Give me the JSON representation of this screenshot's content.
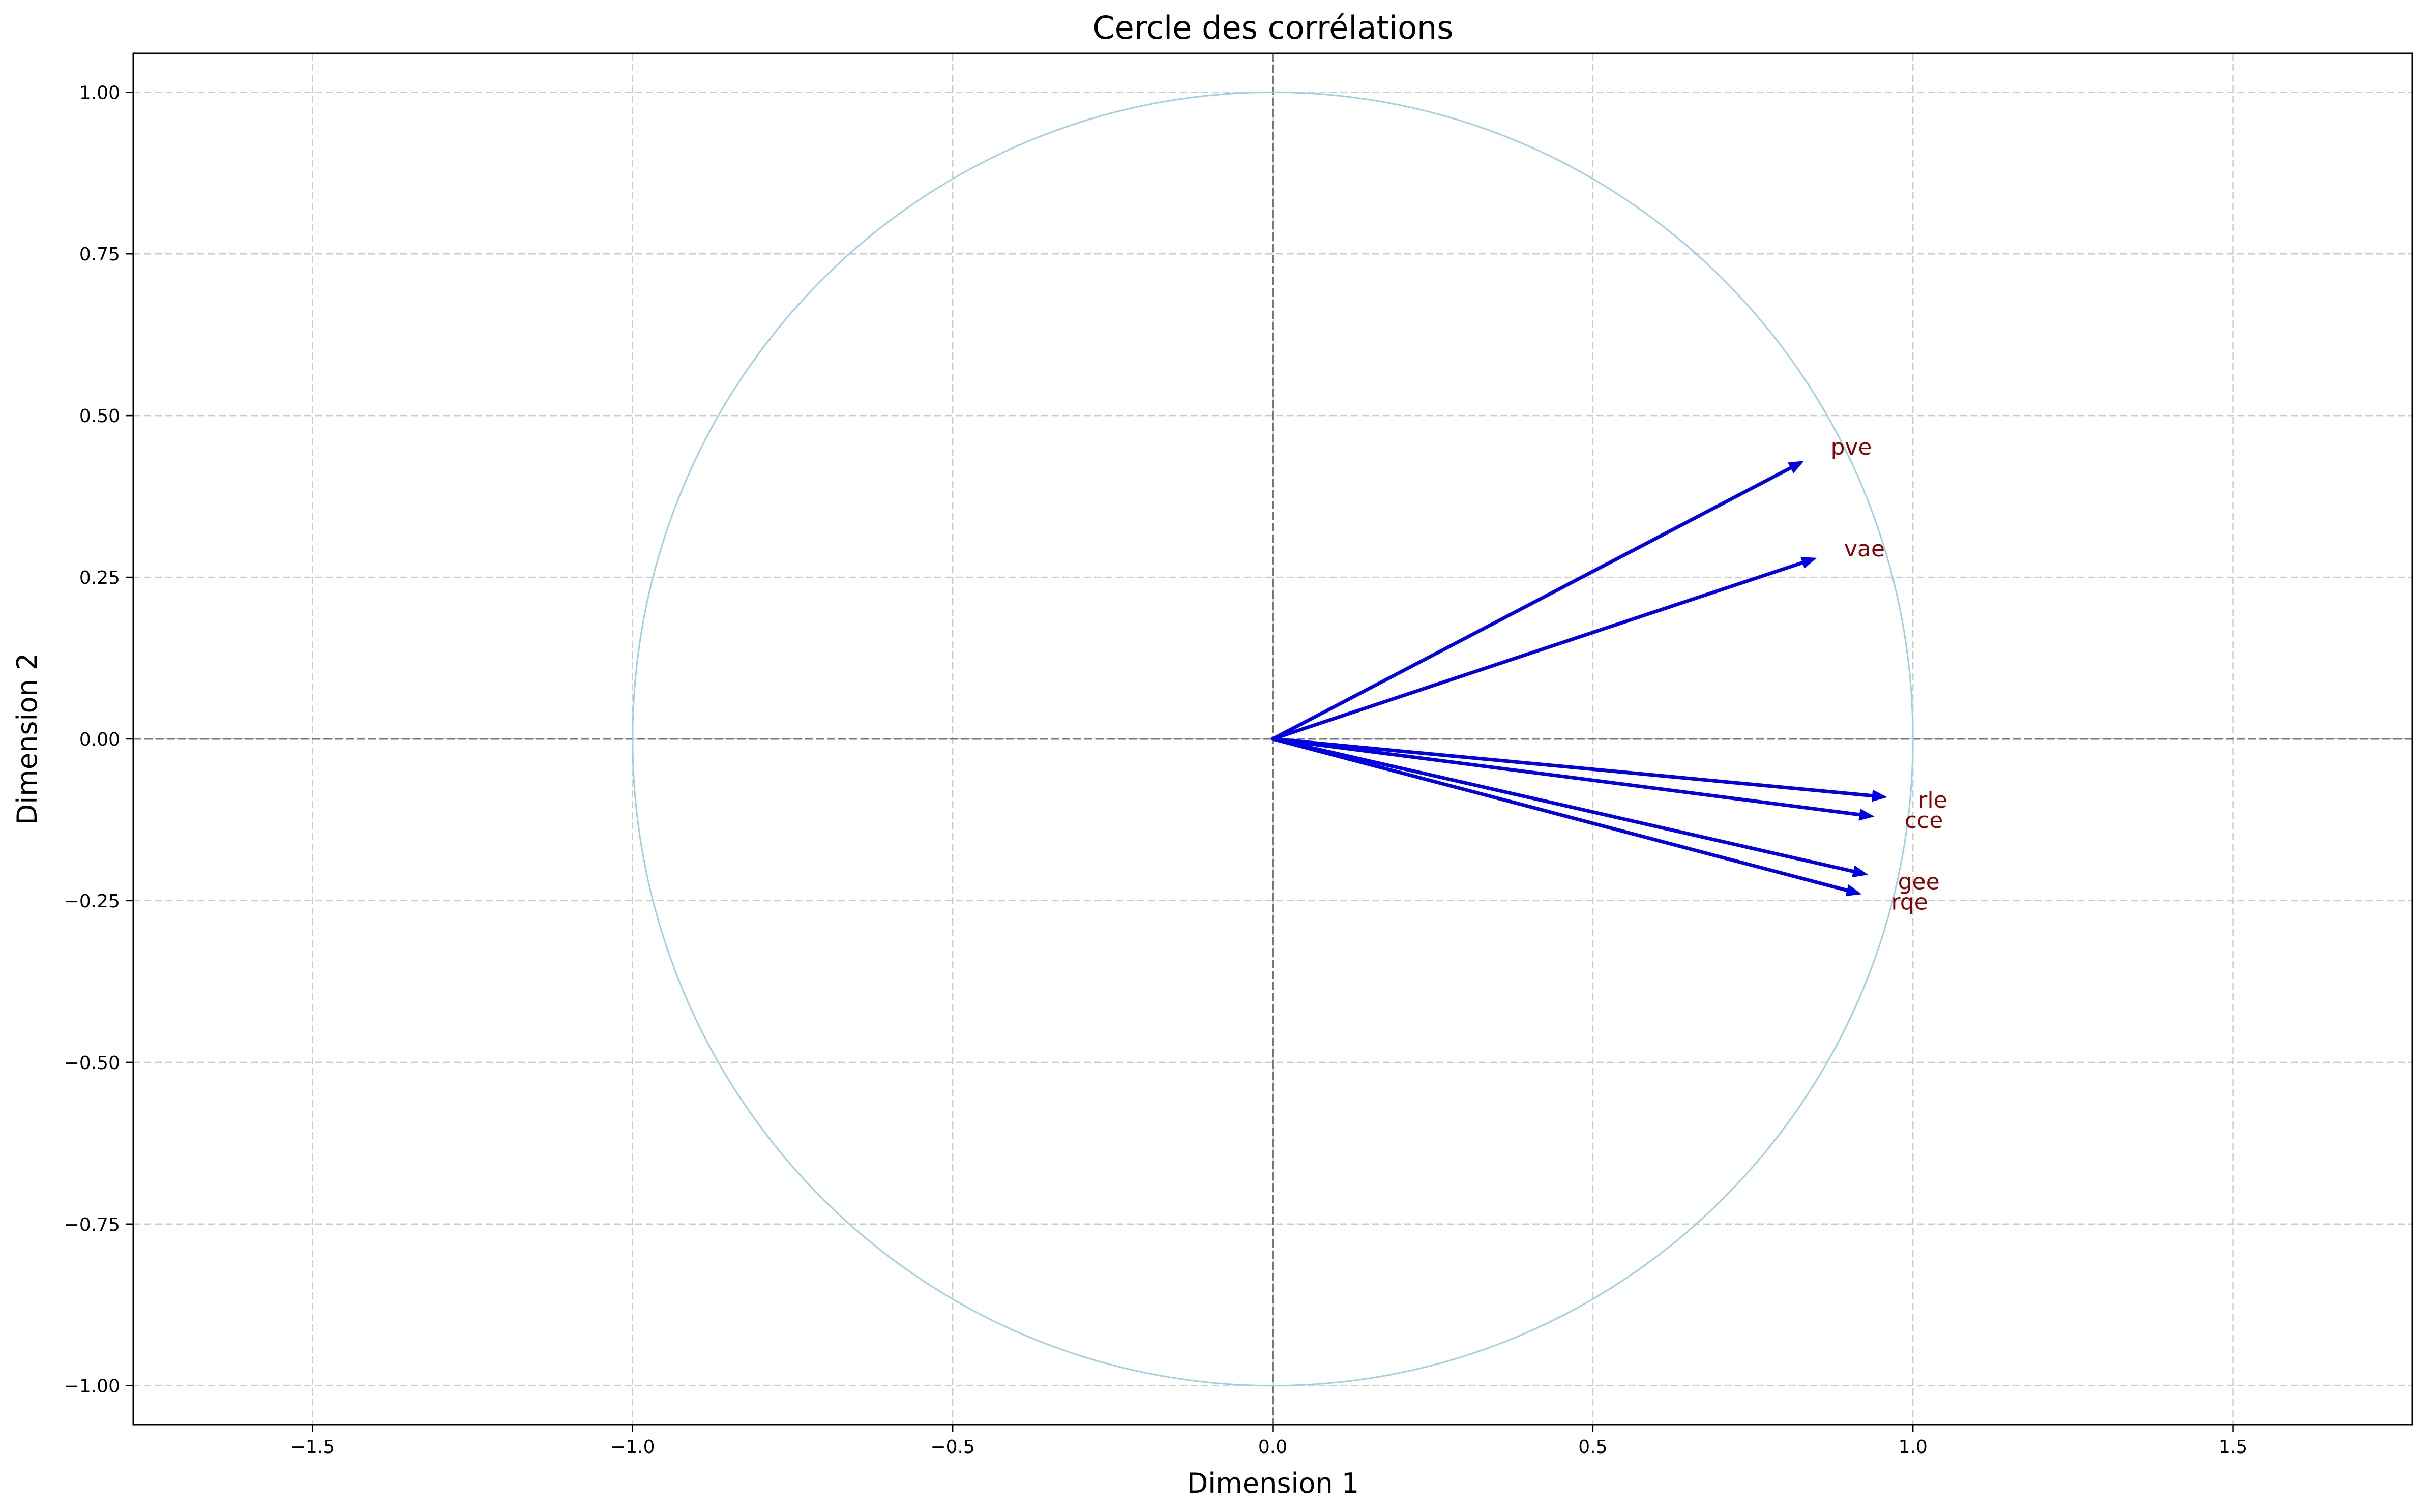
{
  "chart_data": {
    "type": "scatter",
    "title": "Cercle des corrélations",
    "xlabel": "Dimension 1",
    "ylabel": "Dimension 2",
    "xlim": [
      -1.78,
      1.78
    ],
    "ylim": [
      -1.06,
      1.06
    ],
    "x_ticks": [
      -1.5,
      -1.0,
      -0.5,
      0.0,
      0.5,
      1.0,
      1.5
    ],
    "x_tick_labels": [
      "−1.5",
      "−1.0",
      "−0.5",
      "0.0",
      "0.5",
      "1.0",
      "1.5"
    ],
    "y_ticks": [
      1.0,
      0.75,
      0.5,
      0.25,
      0.0,
      -0.25,
      -0.5,
      -0.75,
      -1.0
    ],
    "y_tick_labels": [
      "1.00",
      "0.75",
      "0.50",
      "0.25",
      "0.00",
      "−0.25",
      "−0.50",
      "−0.75",
      "−1.00"
    ],
    "grid": true,
    "unit_circle": true,
    "reference_lines": [
      {
        "axis": "x",
        "value": 0
      },
      {
        "axis": "y",
        "value": 0
      }
    ],
    "colors": {
      "arrow": "#0000ee",
      "label": "#8b0000",
      "circle": "#9ecfe6",
      "grid": "#cccccc",
      "reference": "#777777"
    },
    "vectors": [
      {
        "label": "pve",
        "x": 0.83,
        "y": 0.43
      },
      {
        "label": "vae",
        "x": 0.85,
        "y": 0.28
      },
      {
        "label": "rle",
        "x": 0.96,
        "y": -0.09
      },
      {
        "label": "cce",
        "x": 0.94,
        "y": -0.12
      },
      {
        "label": "gee",
        "x": 0.93,
        "y": -0.21
      },
      {
        "label": "rqe",
        "x": 0.92,
        "y": -0.24
      }
    ]
  }
}
